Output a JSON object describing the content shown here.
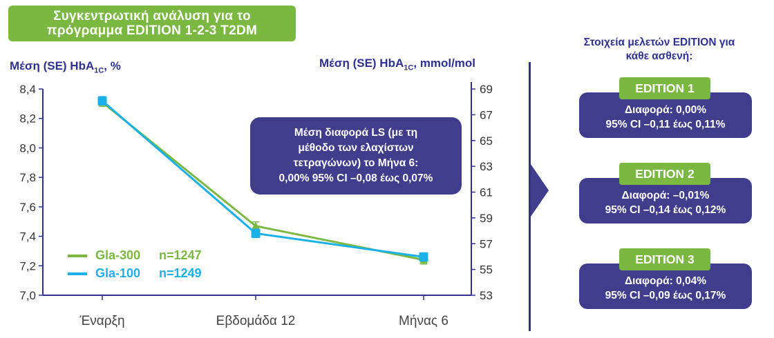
{
  "title": {
    "line1": "Συγκεντρωτική  ανάλυση για το",
    "line2": "πρόγραμμα  EDITION 1-2-3  T2DM"
  },
  "axes": {
    "left_title": "Μέση (SE) HbA",
    "left_sub": "1C",
    "left_unit": ", %",
    "right_title": "Μέση (SE) HbA",
    "right_sub": "1C",
    "right_unit": ", mmol/mol"
  },
  "callout": {
    "line1": "Μέση διαφορά LS (με τη",
    "line2": "μέθοδο των ελαχίστων",
    "line3": "τετραγώνων) το Μήνα 6:",
    "line4": "0,00% 95% CI –0,08 έως 0,07%"
  },
  "legend": [
    {
      "name": "Gla-300",
      "n": "n=1247",
      "color": "#7bb842"
    },
    {
      "name": "Gla-100",
      "n": "n=1249",
      "color": "#1ab0e8"
    }
  ],
  "right_panel": {
    "heading_line1": "Στοιχεία  μελετών EDITION για",
    "heading_line2": "κάθε ασθενή:",
    "studies": [
      {
        "tag": "EDITION 1",
        "line1": "Διαφορά: 0,00%",
        "line2": "95% CI –0,11 έως 0,11%"
      },
      {
        "tag": "EDITION 2",
        "line1": "Διαφορά: –0,01%",
        "line2": "95% CI –0,14 έως 0,12%"
      },
      {
        "tag": "EDITION 3",
        "line1": "Διαφορά: 0,04%",
        "line2": "95% CI –0,09 έως 0,17%"
      }
    ]
  },
  "colors": {
    "gla300": "#7bb842",
    "gla100": "#1ab0e8",
    "navy": "#2e3192",
    "box": "#3f3d8c"
  },
  "chart_data": {
    "type": "line",
    "categories": [
      "Έναρξη",
      "Εβδομάδα 12",
      "Μήνας 6"
    ],
    "series": [
      {
        "name": "Gla-300",
        "values": [
          8.31,
          7.47,
          7.24
        ],
        "marker": "triangle"
      },
      {
        "name": "Gla-100",
        "values": [
          8.32,
          7.42,
          7.26
        ],
        "marker": "square"
      }
    ],
    "ylim": [
      7.0,
      8.4
    ],
    "yticks": [
      "8,4",
      "8,2",
      "8,0",
      "7,8",
      "7,6",
      "7,4",
      "7,2",
      "7,0"
    ],
    "ytick_values": [
      8.4,
      8.2,
      8.0,
      7.8,
      7.6,
      7.4,
      7.2,
      7.0
    ],
    "y2lim": [
      53,
      69
    ],
    "y2ticks": [
      "69",
      "67",
      "65",
      "63",
      "61",
      "59",
      "57",
      "55",
      "53"
    ],
    "y2tick_values": [
      69,
      67,
      65,
      63,
      61,
      59,
      57,
      55,
      53
    ],
    "grid": false,
    "legend_position": "bottom-left"
  }
}
